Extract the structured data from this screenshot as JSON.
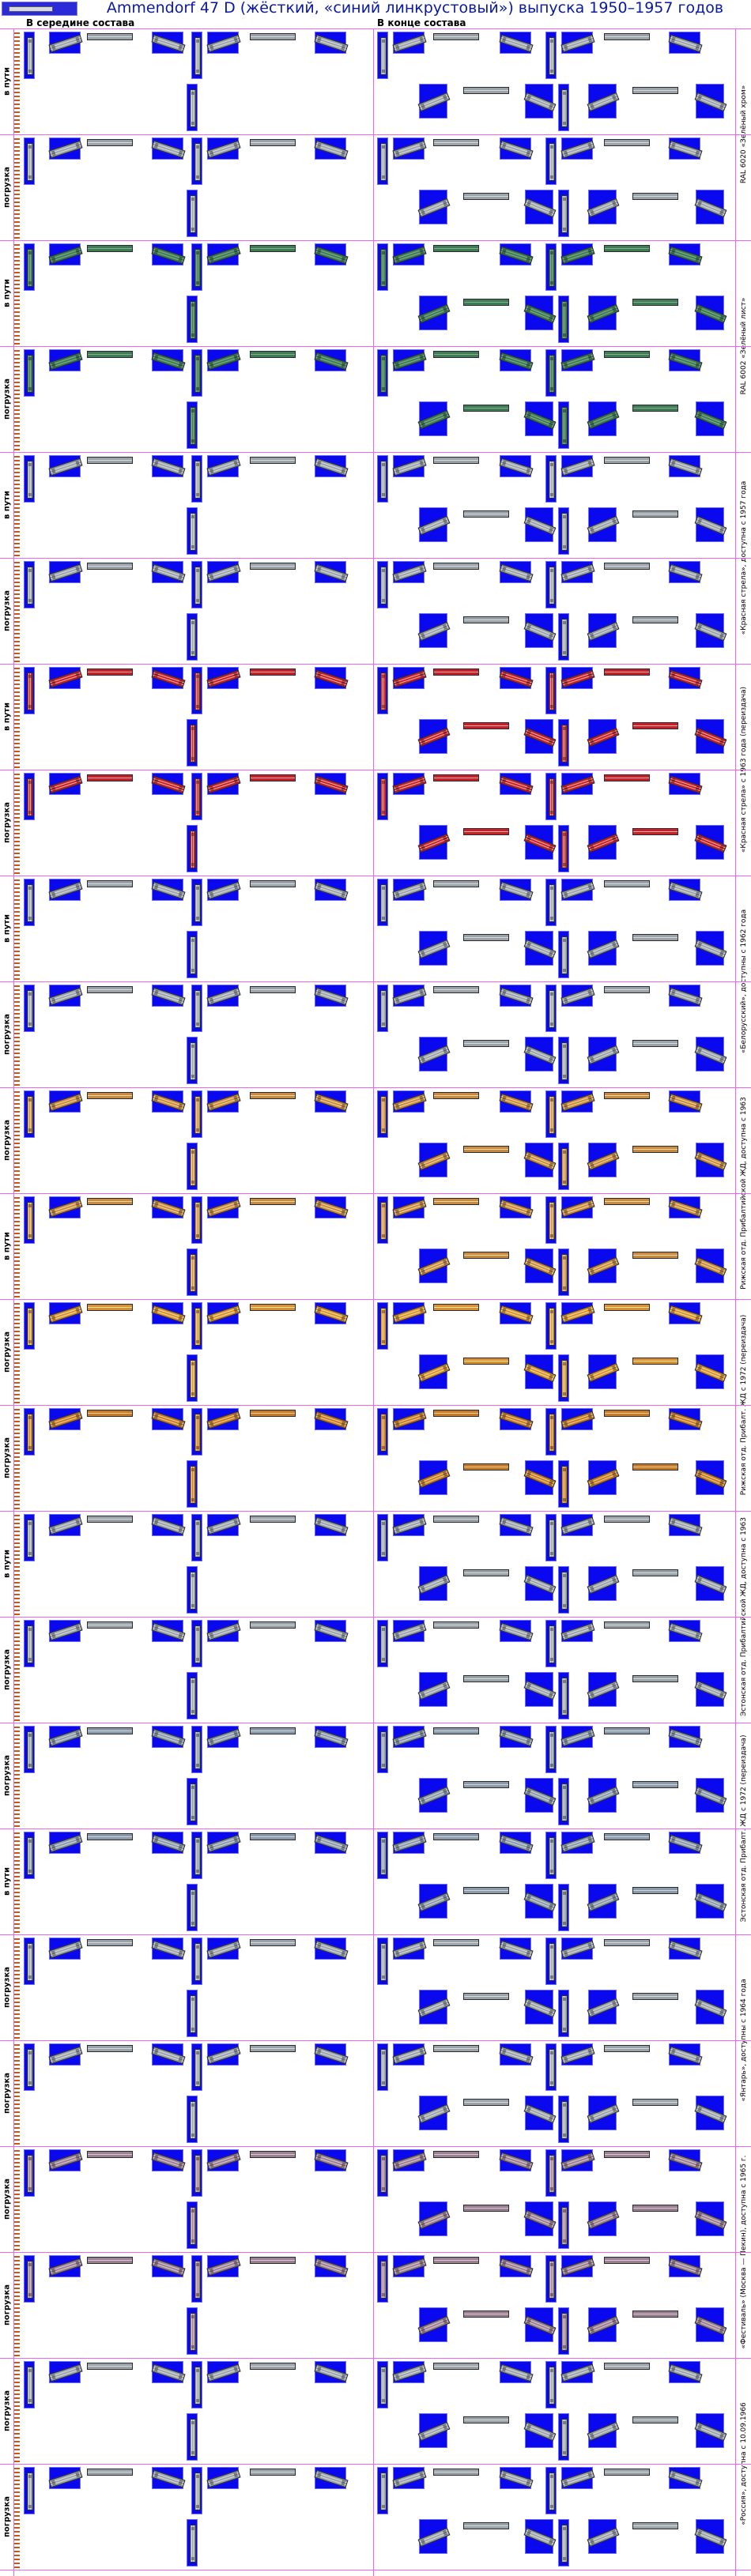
{
  "page": {
    "title": "Ammendorf 47 D (жёсткий, «синий линкрустовый») выпуска 1950–1957 годов"
  },
  "columns": {
    "middle": "В середине состава",
    "end": "В конце состава"
  },
  "row_labels": {
    "in_transit": "в пути",
    "loading": "погрузка"
  },
  "groups": [
    {
      "label": "RAL 6020 «Зелёный хром»",
      "rows": [
        {
          "type": "in_transit",
          "color": "#9aa3a8",
          "stripe": "#d8dadc"
        },
        {
          "type": "loading",
          "color": "#9aa3a8",
          "stripe": "#d8dadc"
        }
      ]
    },
    {
      "label": "RAL 6002 «Зелёный лист»",
      "rows": [
        {
          "type": "in_transit",
          "color": "#3f7b55",
          "stripe": "#7fb08a"
        },
        {
          "type": "loading",
          "color": "#3f7b55",
          "stripe": "#7fb08a"
        }
      ]
    },
    {
      "label": "«Красная стрела», доступна с 1957 года",
      "rows": [
        {
          "type": "in_transit",
          "color": "#9aa3a8",
          "stripe": "#d8dadc"
        },
        {
          "type": "loading",
          "color": "#9aa3a8",
          "stripe": "#d8dadc"
        }
      ]
    },
    {
      "label": "«Красная стрела» с 1963 года (переиздача)",
      "rows": [
        {
          "type": "in_transit",
          "color": "#c8202a",
          "stripe": "#f0b0a0"
        },
        {
          "type": "loading",
          "color": "#c8202a",
          "stripe": "#f0b0a0"
        }
      ]
    },
    {
      "label": "«Белорусский», доступны с 1962 года",
      "rows": [
        {
          "type": "in_transit",
          "color": "#9aa3a8",
          "stripe": "#d8dadc"
        },
        {
          "type": "loading",
          "color": "#9aa3a8",
          "stripe": "#d8dadc"
        }
      ]
    },
    {
      "label": "Рижская отд. Прибалтийской ЖД, доступна с 1963",
      "rows": [
        {
          "type": "loading",
          "color": "#c98a3e",
          "stripe": "#f0d8a8"
        },
        {
          "type": "in_transit",
          "color": "#c98a3e",
          "stripe": "#f0d8a8"
        }
      ]
    },
    {
      "label": "Рижская отд. Прибалт. ЖД с 1972 (переиздача)",
      "rows": [
        {
          "type": "loading",
          "color": "#d89030",
          "stripe": "#f8e0a0"
        },
        {
          "type": "loading",
          "color": "#c77a28",
          "stripe": "#f0d090"
        }
      ]
    },
    {
      "label": "Эстонская отд. Прибалтийской ЖД, доступна с 1963",
      "rows": [
        {
          "type": "in_transit",
          "color": "#9aa3a8",
          "stripe": "#d8dadc"
        },
        {
          "type": "loading",
          "color": "#9aa3a8",
          "stripe": "#d8dadc"
        }
      ]
    },
    {
      "label": "Эстонская отд. Прибалт. ЖД с 1972 (переиздача)",
      "rows": [
        {
          "type": "loading",
          "color": "#8a9aa8",
          "stripe": "#d0d6da"
        },
        {
          "type": "in_transit",
          "color": "#8a9aa8",
          "stripe": "#d0d6da"
        }
      ]
    },
    {
      "label": "«Янтарь», доступны с 1964 года",
      "rows": [
        {
          "type": "loading",
          "color": "#9aa3a8",
          "stripe": "#d8dadc"
        },
        {
          "type": "loading",
          "color": "#9aa3a8",
          "stripe": "#d8dadc"
        }
      ]
    },
    {
      "label": "«Фестиваль» (Москва — Пекин), доступна с 1965 г.",
      "rows": [
        {
          "type": "loading",
          "color": "#9a8090",
          "stripe": "#d8c8d0"
        },
        {
          "type": "loading",
          "color": "#9a8090",
          "stripe": "#d8c8d0"
        }
      ]
    },
    {
      "label": "«Россия», доступна с 10.09.1966",
      "rows": [
        {
          "type": "loading",
          "color": "#9aa3a8",
          "stripe": "#d8dadc"
        },
        {
          "type": "loading",
          "color": "#9aa3a8",
          "stripe": "#d8dadc"
        }
      ]
    }
  ]
}
